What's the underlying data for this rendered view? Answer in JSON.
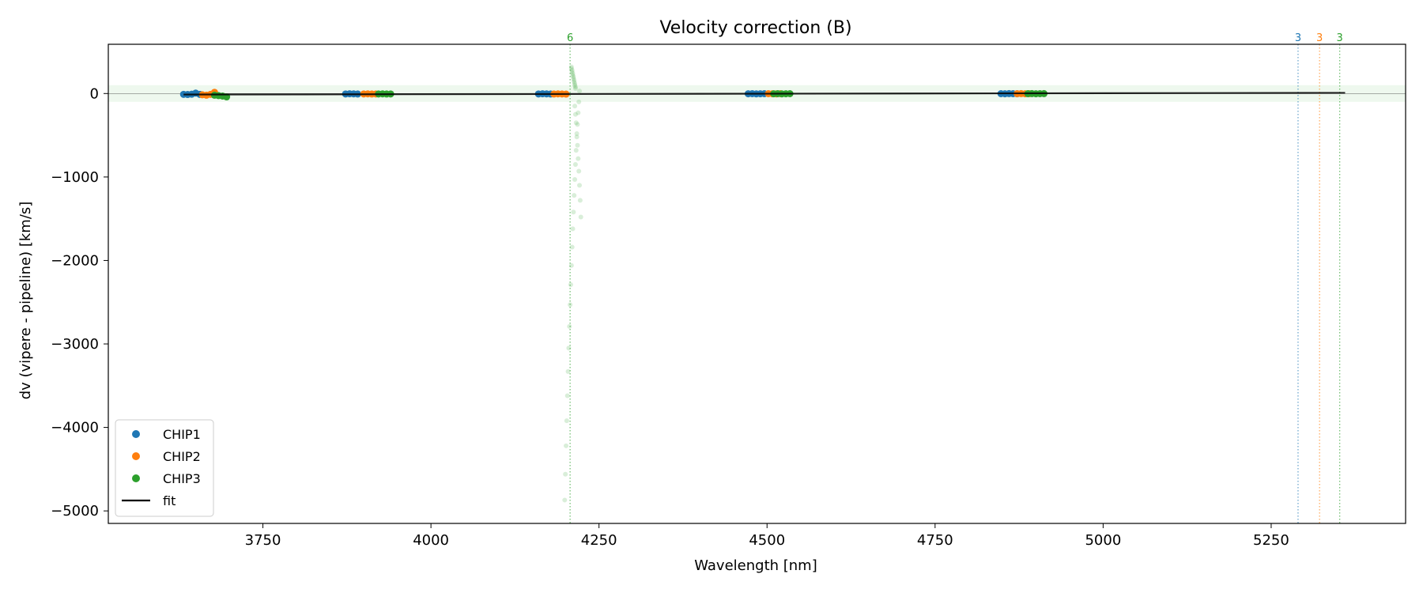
{
  "chart_data": {
    "type": "scatter",
    "title": "Velocity correction (B)",
    "xlabel": "Wavelength [nm]",
    "ylabel": "dv (vipere - pipeline) [km/s]",
    "xlim": [
      3520,
      5450
    ],
    "ylim": [
      -5150,
      590
    ],
    "xticks": [
      3750,
      4000,
      4250,
      4500,
      4750,
      5000,
      5250
    ],
    "yticks": [
      0,
      -1000,
      -2000,
      -3000,
      -4000,
      -5000
    ],
    "xtick_labels": [
      "3750",
      "4000",
      "4250",
      "4500",
      "4750",
      "5000",
      "5250"
    ],
    "ytick_labels": [
      "0",
      "−1000",
      "−2000",
      "−3000",
      "−4000",
      "−5000"
    ],
    "grid": false,
    "legend_position": "lower-left",
    "tolerance_band": [
      -100,
      100
    ],
    "colors": {
      "CHIP1": "#1f77b4",
      "CHIP2": "#ff7f0e",
      "CHIP3": "#2ca02c",
      "fit": "#000000"
    },
    "legend": [
      {
        "label": "CHIP1",
        "kind": "marker",
        "color": "#1f77b4"
      },
      {
        "label": "CHIP2",
        "kind": "marker",
        "color": "#ff7f0e"
      },
      {
        "label": "CHIP3",
        "kind": "marker",
        "color": "#2ca02c"
      },
      {
        "label": "fit",
        "kind": "line",
        "color": "#000000"
      }
    ],
    "series": [
      {
        "name": "CHIP1",
        "color": "#1f77b4",
        "x": [
          3632,
          3638,
          3644,
          3650,
          3656,
          3873,
          3879,
          3885,
          3891,
          4160,
          4166,
          4172,
          4178,
          4472,
          4478,
          4484,
          4490,
          4496,
          4848,
          4854,
          4860,
          4866,
          4872
        ],
        "y": [
          -10,
          -12,
          -8,
          5,
          -10,
          -5,
          -3,
          -4,
          -6,
          -5,
          -3,
          -4,
          -6,
          -3,
          -2,
          -4,
          -3,
          -2,
          -2,
          -3,
          -1,
          -2,
          -3
        ]
      },
      {
        "name": "CHIP2",
        "color": "#ff7f0e",
        "x": [
          3660,
          3666,
          3672,
          3678,
          3900,
          3906,
          3912,
          3918,
          4183,
          4189,
          4195,
          4201,
          4502,
          4508,
          4514,
          4520,
          4872,
          4878,
          4884,
          4890
        ],
        "y": [
          -15,
          -20,
          -10,
          15,
          -5,
          -4,
          -6,
          -5,
          -6,
          -4,
          -5,
          -7,
          -2,
          -3,
          -4,
          -2,
          -2,
          -1,
          -3,
          -2
        ]
      },
      {
        "name": "CHIP3",
        "color": "#2ca02c",
        "x": [
          3678,
          3684,
          3690,
          3696,
          3922,
          3928,
          3934,
          3940,
          4510,
          4516,
          4522,
          4528,
          4534,
          4888,
          4894,
          4900,
          4906,
          4912
        ],
        "y": [
          -20,
          -25,
          -30,
          -40,
          -5,
          -4,
          -6,
          -5,
          -3,
          -2,
          -4,
          -3,
          -2,
          -2,
          -1,
          -3,
          -2,
          -1
        ]
      },
      {
        "name": "CHIP3 rejected",
        "color": "#2ca02c",
        "opacity": 0.18,
        "x": [
          4199,
          4200,
          4201,
          4202,
          4203,
          4204,
          4205,
          4206,
          4207,
          4208,
          4209,
          4210,
          4211,
          4212,
          4213,
          4214,
          4215,
          4216,
          4217,
          4218,
          4219,
          4220,
          4221,
          4209,
          4209,
          4210,
          4210,
          4211,
          4211,
          4212,
          4212,
          4213,
          4213,
          4214,
          4214,
          4215,
          4215
        ],
        "y": [
          -4870,
          -4560,
          -4220,
          -3920,
          -3620,
          -3330,
          -3050,
          -2790,
          -2530,
          -2290,
          -2060,
          -1840,
          -1620,
          -1420,
          -1220,
          -1030,
          -850,
          -680,
          -520,
          -370,
          -230,
          -100,
          30,
          320,
          300,
          280,
          260,
          240,
          220,
          200,
          180,
          160,
          140,
          120,
          100,
          80,
          60
        ]
      },
      {
        "name": "CHIP3 rejected (far)",
        "color": "#2ca02c",
        "opacity": 0.18,
        "x": [
          4214,
          4215,
          4216,
          4217,
          4218,
          4219,
          4220,
          4221,
          4222,
          4223
        ],
        "y": [
          -150,
          -250,
          -350,
          -480,
          -620,
          -780,
          -930,
          -1100,
          -1280,
          -1480
        ]
      },
      {
        "name": "fit",
        "type": "line",
        "color": "#000000",
        "x": [
          3632,
          5360
        ],
        "y": [
          -12,
          8
        ]
      }
    ],
    "vertical_markers": [
      {
        "x": 4207,
        "label": "6",
        "color": "#2ca02c"
      },
      {
        "x": 5290,
        "label": "3",
        "color": "#1f77b4"
      },
      {
        "x": 5322,
        "label": "3",
        "color": "#ff7f0e"
      },
      {
        "x": 5352,
        "label": "3",
        "color": "#2ca02c"
      }
    ]
  }
}
